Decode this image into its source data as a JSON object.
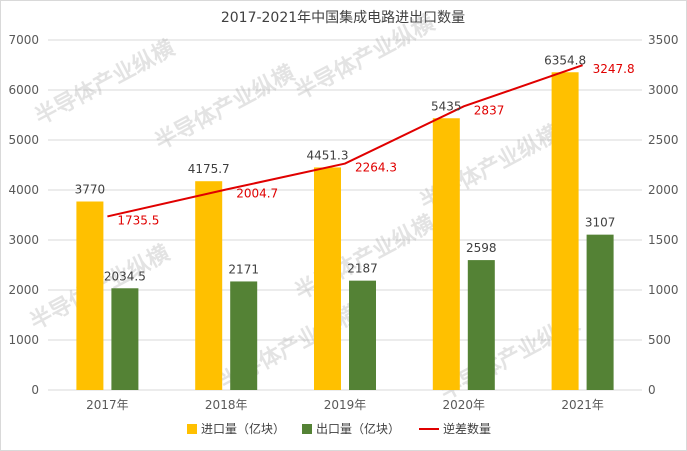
{
  "chart_data": {
    "type": "bar",
    "title": "2017-2021年中国集成电路进出口数量",
    "categories": [
      "2017年",
      "2018年",
      "2019年",
      "2020年",
      "2021年"
    ],
    "series": [
      {
        "name": "进口量（亿块）",
        "type": "bar",
        "axis": "left",
        "color": "#ffc000",
        "values": [
          3770,
          4175.7,
          4451.3,
          5435,
          6354.8
        ],
        "labels": [
          "3770",
          "4175.7",
          "4451.3",
          "5435",
          "6354.8"
        ]
      },
      {
        "name": "出口量（亿块）",
        "type": "bar",
        "axis": "left",
        "color": "#548235",
        "values": [
          2034.5,
          2171,
          2187,
          2598,
          3107
        ],
        "labels": [
          "2034.5",
          "2171",
          "2187",
          "2598",
          "3107"
        ]
      },
      {
        "name": "逆差数量",
        "type": "line",
        "axis": "right",
        "color": "#e00000",
        "values": [
          1735.5,
          2004.7,
          2264.3,
          2837,
          3247.8
        ],
        "labels": [
          "1735.5",
          "2004.7",
          "2264.3",
          "2837",
          "3247.8"
        ]
      }
    ],
    "ylim_left": [
      0,
      7000
    ],
    "ylim_right": [
      0,
      3500
    ],
    "yticks_left": [
      "0",
      "1000",
      "2000",
      "3000",
      "4000",
      "5000",
      "6000",
      "7000"
    ],
    "yticks_right": [
      "0",
      "500",
      "1000",
      "1500",
      "2000",
      "2500",
      "3000",
      "3500"
    ],
    "grid": true,
    "legend_position": "bottom"
  },
  "watermark": "半导体产业纵横"
}
